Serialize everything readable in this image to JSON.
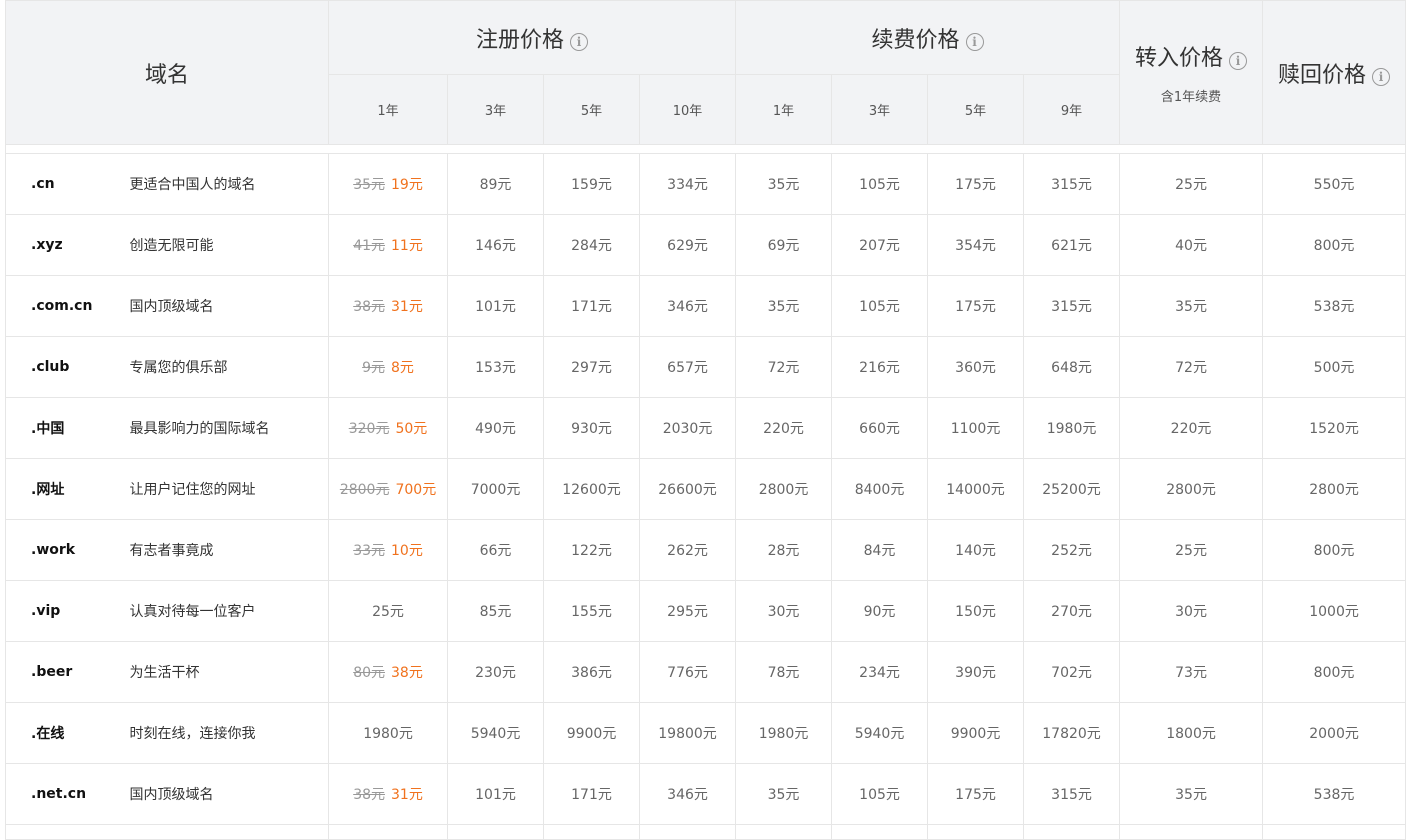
{
  "header": {
    "domain": "域名",
    "register": "注册价格",
    "renew": "续费价格",
    "transfer": "转入价格",
    "transfer_note": "含1年续费",
    "redeem": "赎回价格",
    "info_glyph": "i",
    "register_years": [
      "1年",
      "3年",
      "5年",
      "10年"
    ],
    "renew_years": [
      "1年",
      "3年",
      "5年",
      "9年"
    ]
  },
  "colors": {
    "sale": "#f0721e",
    "header_bg": "#f2f3f5",
    "border": "#e6e6e6"
  },
  "rows": [
    {
      "domain": ".cn",
      "desc": "更适合中国人的域名",
      "r1_old": "35元",
      "r1": "19元",
      "r3": "89元",
      "r5": "159元",
      "r10": "334元",
      "n1": "35元",
      "n3": "105元",
      "n5": "175元",
      "n9": "315元",
      "transfer": "25元",
      "redeem": "550元"
    },
    {
      "domain": ".xyz",
      "desc": "创造无限可能",
      "r1_old": "41元",
      "r1": "11元",
      "r3": "146元",
      "r5": "284元",
      "r10": "629元",
      "n1": "69元",
      "n3": "207元",
      "n5": "354元",
      "n9": "621元",
      "transfer": "40元",
      "redeem": "800元"
    },
    {
      "domain": ".com.cn",
      "desc": "国内顶级域名",
      "r1_old": "38元",
      "r1": "31元",
      "r3": "101元",
      "r5": "171元",
      "r10": "346元",
      "n1": "35元",
      "n3": "105元",
      "n5": "175元",
      "n9": "315元",
      "transfer": "35元",
      "redeem": "538元"
    },
    {
      "domain": ".club",
      "desc": "专属您的俱乐部",
      "r1_old": "9元",
      "r1": "8元",
      "r3": "153元",
      "r5": "297元",
      "r10": "657元",
      "n1": "72元",
      "n3": "216元",
      "n5": "360元",
      "n9": "648元",
      "transfer": "72元",
      "redeem": "500元"
    },
    {
      "domain": ".中国",
      "desc": "最具影响力的国际域名",
      "r1_old": "320元",
      "r1": "50元",
      "r3": "490元",
      "r5": "930元",
      "r10": "2030元",
      "n1": "220元",
      "n3": "660元",
      "n5": "1100元",
      "n9": "1980元",
      "transfer": "220元",
      "redeem": "1520元"
    },
    {
      "domain": ".网址",
      "desc": "让用户记住您的网址",
      "r1_old": "2800元",
      "r1": "700元",
      "r3": "7000元",
      "r5": "12600元",
      "r10": "26600元",
      "n1": "2800元",
      "n3": "8400元",
      "n5": "14000元",
      "n9": "25200元",
      "transfer": "2800元",
      "redeem": "2800元"
    },
    {
      "domain": ".work",
      "desc": "有志者事竟成",
      "r1_old": "33元",
      "r1": "10元",
      "r3": "66元",
      "r5": "122元",
      "r10": "262元",
      "n1": "28元",
      "n3": "84元",
      "n5": "140元",
      "n9": "252元",
      "transfer": "25元",
      "redeem": "800元"
    },
    {
      "domain": ".vip",
      "desc": "认真对待每一位客户",
      "r1_old": "",
      "r1_plain": "25元",
      "r3": "85元",
      "r5": "155元",
      "r10": "295元",
      "n1": "30元",
      "n3": "90元",
      "n5": "150元",
      "n9": "270元",
      "transfer": "30元",
      "redeem": "1000元"
    },
    {
      "domain": ".beer",
      "desc": "为生活干杯",
      "r1_old": "80元",
      "r1": "38元",
      "r3": "230元",
      "r5": "386元",
      "r10": "776元",
      "n1": "78元",
      "n3": "234元",
      "n5": "390元",
      "n9": "702元",
      "transfer": "73元",
      "redeem": "800元"
    },
    {
      "domain": ".在线",
      "desc": "时刻在线，连接你我",
      "r1_old": "",
      "r1_plain": "1980元",
      "r3": "5940元",
      "r5": "9900元",
      "r10": "19800元",
      "n1": "1980元",
      "n3": "5940元",
      "n5": "9900元",
      "n9": "17820元",
      "transfer": "1800元",
      "redeem": "2000元"
    },
    {
      "domain": ".net.cn",
      "desc": "国内顶级域名",
      "r1_old": "38元",
      "r1": "31元",
      "r3": "101元",
      "r5": "171元",
      "r10": "346元",
      "n1": "35元",
      "n3": "105元",
      "n5": "175元",
      "n9": "315元",
      "transfer": "35元",
      "redeem": "538元"
    }
  ]
}
